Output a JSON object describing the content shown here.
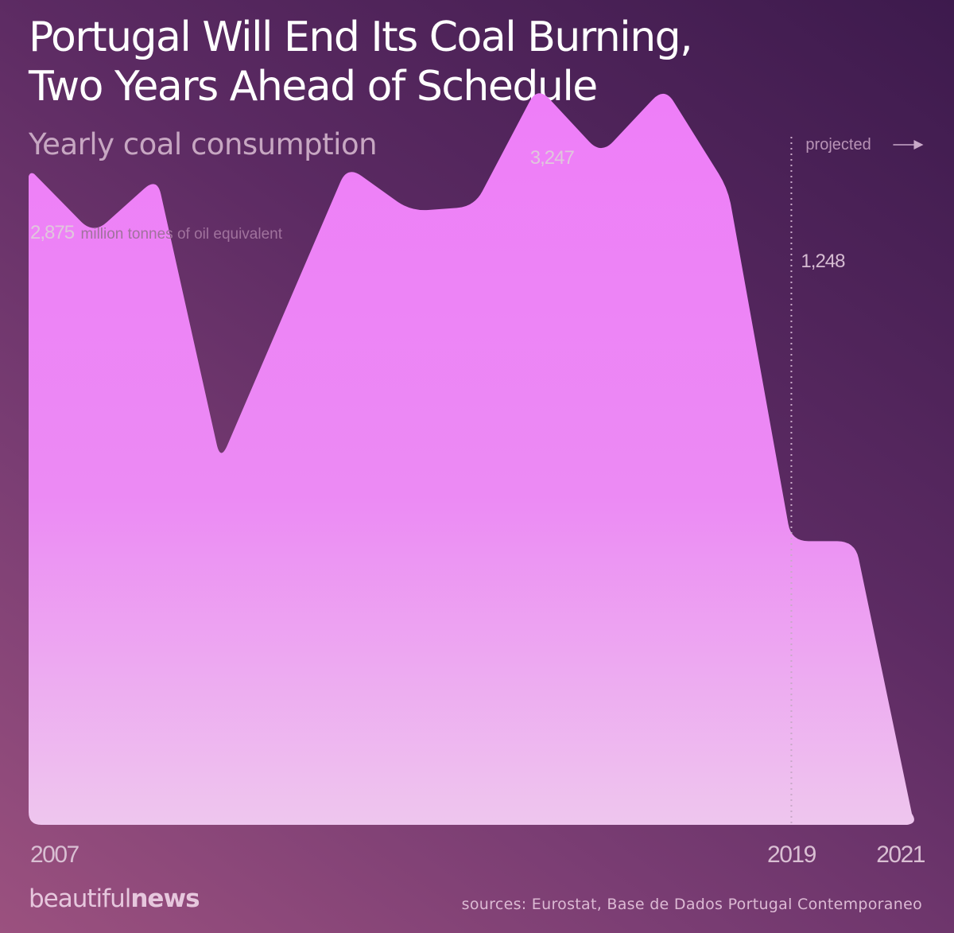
{
  "title_line1": "Portugal Will End Its Coal Burning,",
  "title_line2": "Two Years Ahead of Schedule",
  "subtitle": "Yearly coal consumption",
  "brand": {
    "part1": "beautiful",
    "part2": "news"
  },
  "sources": "sources: Eurostat, Base de Dados Portugal Contemporaneo",
  "colors": {
    "area_top": "#ee7ef8",
    "area_bottom": "#eec6ee",
    "label": "#d9bfd3",
    "divider": "#c9a9c9"
  },
  "chart_data": {
    "type": "area",
    "title": "Portugal Will End Its Coal Burning, Two Years Ahead of Schedule",
    "subtitle": "Yearly coal consumption",
    "unit": "million tonnes of oil equivalent",
    "x": [
      2007,
      2008,
      2009,
      2010,
      2011,
      2012,
      2013,
      2014,
      2015,
      2016,
      2017,
      2018,
      2019,
      2020,
      2021
    ],
    "values": [
      2.875,
      2.6,
      2.85,
      1.6,
      2.25,
      2.9,
      2.7,
      2.72,
      3.25,
      2.95,
      3.247,
      2.8,
      1.248,
      1.248,
      0
    ],
    "projected_from": 2019,
    "ylim": [
      0,
      3.5
    ],
    "x_tick_labels": [
      "2007",
      "2019",
      "2021"
    ],
    "annotations": {
      "start_value": "2,875",
      "start_unit": "million tonnes of oil equivalent",
      "peak_value": "3,247",
      "value_2019": "1,248",
      "projected_label": "projected"
    }
  }
}
